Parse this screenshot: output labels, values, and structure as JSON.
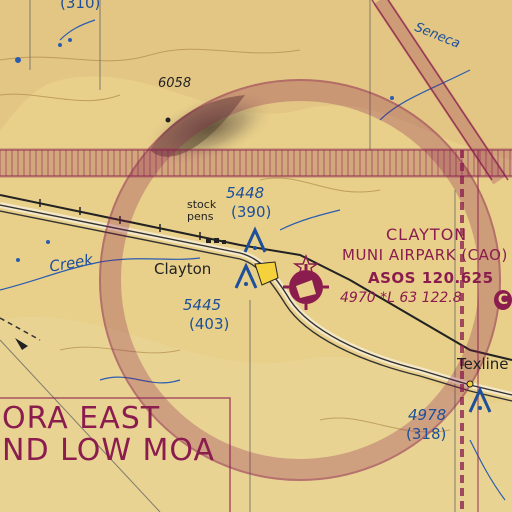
{
  "chart": {
    "labels": {
      "peak_elevation": "6058",
      "top_obstacle_msl": "(310)",
      "seneca": "Seneca",
      "stock_pens": "stock pens",
      "tower1_msl": "5448",
      "tower1_agl": "(390)",
      "town_clayton": "Clayton",
      "creek": "Creek",
      "tower2_msl": "5445",
      "tower2_agl": "(403)",
      "town_texline": "Texline",
      "tower3_msl": "4978",
      "tower3_agl": "(318)"
    },
    "airport": {
      "name": "CLAYTON",
      "name_line2": "MUNI AIRPARK (CAO)",
      "asos": "ASOS  120.625",
      "info": "4970 *L 63  122.8",
      "ctaf_symbol": "C"
    },
    "moa": {
      "line1": "ORA EAST",
      "line2": "ND LOW MOA"
    }
  },
  "colors": {
    "terrain": "#e8cf8a",
    "magenta": "#8a1c4e",
    "blue": "#1d4f9a",
    "road": "#333333"
  }
}
